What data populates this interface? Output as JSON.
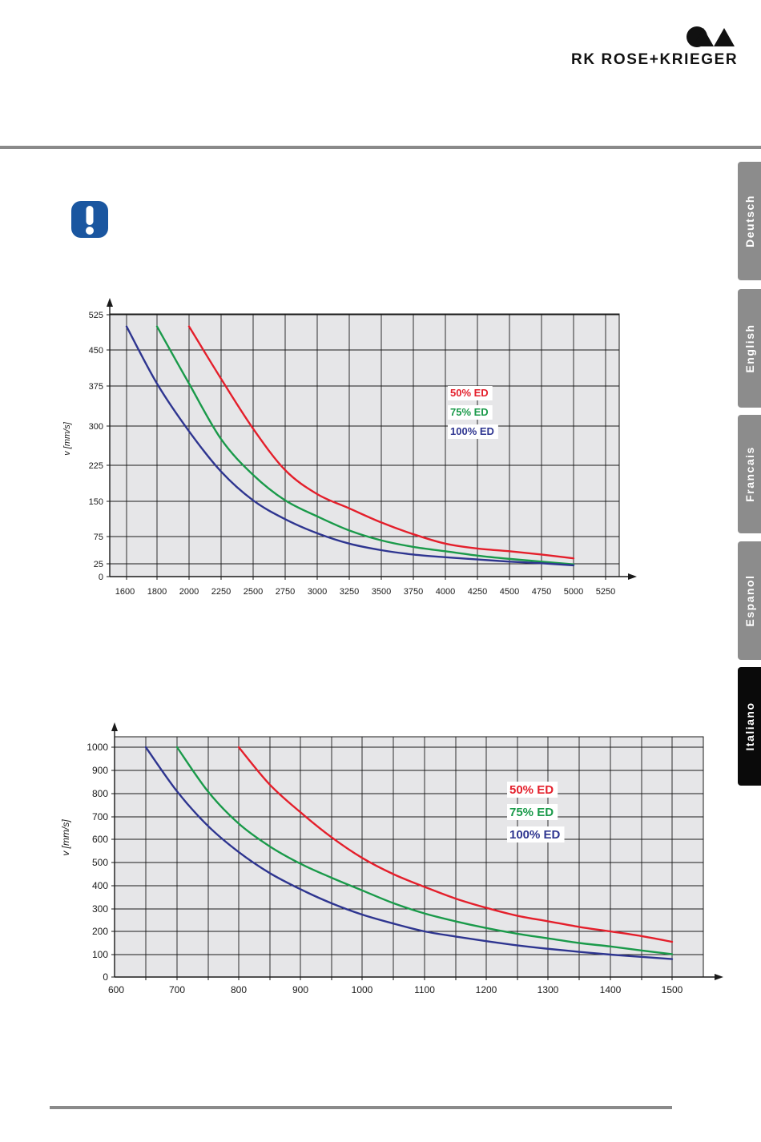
{
  "brand": {
    "name": "RK ROSE+KRIEGER"
  },
  "icons": {
    "notice": "exclamation-icon",
    "logo": "rk-logo-mark"
  },
  "colors": {
    "red": "#e41f2b",
    "green": "#1a9a4a",
    "blue": "#2e3590",
    "grid_bg": "#e6e6e8",
    "tab": "#8c8c8c",
    "tab_active": "#0a0a0a",
    "notice": "#1a56a0"
  },
  "language_tabs": [
    {
      "label": "Deutsch",
      "active": false
    },
    {
      "label": "English",
      "active": false
    },
    {
      "label": "Francais",
      "active": false
    },
    {
      "label": "Espanol",
      "active": false
    },
    {
      "label": "Italiano",
      "active": true
    }
  ],
  "chart_data": [
    {
      "type": "line",
      "title": "",
      "xlabel": "",
      "ylabel": "v [mm/s]",
      "x_ticks": [
        1600,
        1800,
        2000,
        2250,
        2500,
        2750,
        3000,
        3250,
        3500,
        3750,
        4000,
        4250,
        4500,
        4750,
        5000,
        5250
      ],
      "y_ticks": [
        0,
        25,
        75,
        150,
        225,
        300,
        375,
        450,
        525
      ],
      "grid": true,
      "legend_position": "upper-right",
      "series": [
        {
          "name": "50% ED",
          "color": "#e41f2b",
          "points": [
            [
              2000,
              500
            ],
            [
              2250,
              390
            ],
            [
              2500,
              295
            ],
            [
              2750,
              215
            ],
            [
              3000,
              165
            ],
            [
              3250,
              135
            ],
            [
              3500,
              105
            ],
            [
              3750,
              80
            ],
            [
              4000,
              62
            ],
            [
              4250,
              53
            ],
            [
              4500,
              48
            ],
            [
              4750,
              42
            ],
            [
              5000,
              35
            ]
          ]
        },
        {
          "name": "75% ED",
          "color": "#1a9a4a",
          "points": [
            [
              1800,
              500
            ],
            [
              2000,
              380
            ],
            [
              2250,
              275
            ],
            [
              2500,
              205
            ],
            [
              2750,
              152
            ],
            [
              3000,
              118
            ],
            [
              3250,
              88
            ],
            [
              3500,
              68
            ],
            [
              3750,
              56
            ],
            [
              4000,
              48
            ],
            [
              4250,
              40
            ],
            [
              4500,
              34
            ],
            [
              4750,
              29
            ],
            [
              5000,
              24
            ]
          ]
        },
        {
          "name": "100% ED",
          "color": "#2e3590",
          "points": [
            [
              1600,
              500
            ],
            [
              1800,
              380
            ],
            [
              2000,
              290
            ],
            [
              2250,
              212
            ],
            [
              2500,
              152
            ],
            [
              2750,
              112
            ],
            [
              3000,
              82
            ],
            [
              3250,
              62
            ],
            [
              3500,
              50
            ],
            [
              3750,
              42
            ],
            [
              4000,
              37
            ],
            [
              4250,
              33
            ],
            [
              4500,
              29
            ],
            [
              4750,
              26
            ],
            [
              5000,
              22
            ]
          ]
        }
      ]
    },
    {
      "type": "line",
      "title": "",
      "xlabel": "",
      "ylabel": "v [mm/s]",
      "x_ticks": [
        600,
        700,
        800,
        900,
        1000,
        1100,
        1200,
        1300,
        1400,
        1500
      ],
      "y_ticks": [
        0,
        100,
        200,
        300,
        400,
        500,
        600,
        700,
        800,
        900,
        1000
      ],
      "grid": true,
      "legend_position": "upper-right",
      "series": [
        {
          "name": "50% ED",
          "color": "#e41f2b",
          "points": [
            [
              800,
              1000
            ],
            [
              850,
              840
            ],
            [
              900,
              720
            ],
            [
              950,
              610
            ],
            [
              1000,
              520
            ],
            [
              1050,
              450
            ],
            [
              1100,
              395
            ],
            [
              1150,
              345
            ],
            [
              1200,
              305
            ],
            [
              1250,
              270
            ],
            [
              1300,
              245
            ],
            [
              1350,
              220
            ],
            [
              1400,
              200
            ],
            [
              1450,
              180
            ],
            [
              1500,
              155
            ]
          ]
        },
        {
          "name": "75% ED",
          "color": "#1a9a4a",
          "points": [
            [
              700,
              1000
            ],
            [
              750,
              810
            ],
            [
              800,
              670
            ],
            [
              850,
              570
            ],
            [
              900,
              495
            ],
            [
              950,
              435
            ],
            [
              1000,
              380
            ],
            [
              1050,
              325
            ],
            [
              1100,
              280
            ],
            [
              1150,
              245
            ],
            [
              1200,
              215
            ],
            [
              1250,
              190
            ],
            [
              1300,
              170
            ],
            [
              1350,
              150
            ],
            [
              1400,
              135
            ],
            [
              1450,
              118
            ],
            [
              1500,
              102
            ]
          ]
        },
        {
          "name": "100% ED",
          "color": "#2e3590",
          "points": [
            [
              650,
              1000
            ],
            [
              700,
              810
            ],
            [
              750,
              660
            ],
            [
              800,
              545
            ],
            [
              850,
              455
            ],
            [
              900,
              385
            ],
            [
              950,
              325
            ],
            [
              1000,
              275
            ],
            [
              1050,
              235
            ],
            [
              1100,
              200
            ],
            [
              1150,
              178
            ],
            [
              1200,
              158
            ],
            [
              1250,
              140
            ],
            [
              1300,
              125
            ],
            [
              1350,
              112
            ],
            [
              1400,
              100
            ],
            [
              1450,
              90
            ],
            [
              1500,
              80
            ]
          ]
        }
      ]
    }
  ]
}
